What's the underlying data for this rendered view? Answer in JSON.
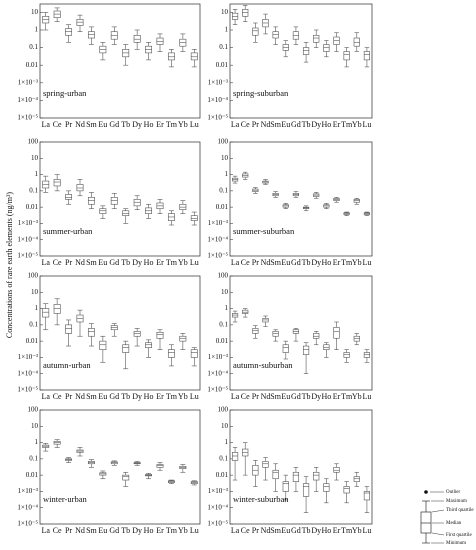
{
  "ylabel": "Concentrations of rare earth elements (ng/m³)",
  "legend": [
    "Outlier",
    "Maximum",
    "Third quartile",
    "Median",
    "First quartile",
    "Minimum"
  ],
  "chart_data": [
    {
      "type": "box",
      "title": "spring-urban",
      "log": true,
      "color": "#555555",
      "categories": [
        "La",
        "Ce",
        "Pr",
        "Nd",
        "Sm",
        "Eu",
        "Gd",
        "Tb",
        "Dy",
        "Ho",
        "Er",
        "Tm",
        "Yb",
        "Lu"
      ],
      "min": [
        1,
        3,
        0.2,
        0.8,
        0.15,
        0.02,
        0.15,
        0.01,
        0.08,
        0.02,
        0.06,
        0.008,
        0.06,
        0.008
      ],
      "q1": [
        2.5,
        5,
        0.5,
        1.8,
        0.35,
        0.05,
        0.3,
        0.03,
        0.2,
        0.05,
        0.15,
        0.02,
        0.12,
        0.02
      ],
      "median": [
        4,
        8,
        0.8,
        2.8,
        0.55,
        0.08,
        0.5,
        0.05,
        0.3,
        0.08,
        0.22,
        0.03,
        0.2,
        0.03
      ],
      "q3": [
        6,
        12,
        1.2,
        4,
        0.8,
        0.12,
        0.8,
        0.08,
        0.5,
        0.12,
        0.35,
        0.05,
        0.3,
        0.05
      ],
      "max": [
        10,
        18,
        2,
        7,
        1.5,
        0.2,
        1.5,
        0.15,
        1,
        0.2,
        0.6,
        0.08,
        0.6,
        0.08
      ],
      "ylim": [
        1e-05,
        30
      ],
      "yticks": [
        10,
        1,
        0.1,
        0.01,
        {
          "value": 0.001,
          "label": "1×10⁻³"
        },
        {
          "value": 0.0001,
          "label": "1×10⁻⁴"
        },
        {
          "value": 1e-05,
          "label": "1×10⁻⁵"
        }
      ]
    },
    {
      "type": "box",
      "title": "spring-suburban",
      "log": true,
      "color": "#555555",
      "categories": [
        "La",
        "Ce",
        "Pr",
        "Nd",
        "Sm",
        "Eu",
        "Gd",
        "Tb",
        "Dy",
        "Ho",
        "Er",
        "Tm",
        "Yb",
        "Lu"
      ],
      "min": [
        2,
        3,
        0.2,
        0.6,
        0.15,
        0.03,
        0.15,
        0.015,
        0.1,
        0.03,
        0.06,
        0.008,
        0.06,
        0.008
      ],
      "q1": [
        4,
        6,
        0.5,
        1.5,
        0.35,
        0.07,
        0.3,
        0.04,
        0.2,
        0.06,
        0.15,
        0.02,
        0.12,
        0.02
      ],
      "median": [
        6,
        10,
        0.9,
        2.5,
        0.55,
        0.1,
        0.5,
        0.07,
        0.35,
        0.1,
        0.25,
        0.04,
        0.2,
        0.04
      ],
      "q3": [
        9,
        15,
        1.3,
        4,
        0.8,
        0.15,
        0.8,
        0.1,
        0.5,
        0.15,
        0.4,
        0.06,
        0.35,
        0.06
      ],
      "max": [
        15,
        25,
        2.5,
        8,
        1.5,
        0.25,
        1.5,
        0.2,
        1,
        0.25,
        0.7,
        0.1,
        0.7,
        0.1
      ],
      "ylim": [
        1e-05,
        30
      ],
      "yticks": [
        10,
        1,
        0.1,
        0.01,
        {
          "value": 0.001,
          "label": "1×10⁻³"
        },
        {
          "value": 0.0001,
          "label": "1×10⁻⁴"
        },
        {
          "value": 1e-05,
          "label": "1×10⁻⁵"
        }
      ]
    },
    {
      "type": "box",
      "title": "summer-urban",
      "log": true,
      "color": "#555555",
      "categories": [
        "La",
        "Ce",
        "Pr",
        "Nd",
        "Sm",
        "Eu",
        "Gd",
        "Tb",
        "Dy",
        "Ho",
        "Er",
        "Tm",
        "Yb",
        "Lu"
      ],
      "min": [
        0.08,
        0.1,
        0.015,
        0.05,
        0.008,
        0.002,
        0.008,
        0.001,
        0.007,
        0.002,
        0.004,
        0.0008,
        0.004,
        0.0008
      ],
      "q1": [
        0.15,
        0.2,
        0.03,
        0.1,
        0.015,
        0.004,
        0.015,
        0.003,
        0.012,
        0.004,
        0.008,
        0.0015,
        0.007,
        0.0015
      ],
      "median": [
        0.25,
        0.35,
        0.04,
        0.15,
        0.025,
        0.006,
        0.025,
        0.004,
        0.02,
        0.006,
        0.012,
        0.0025,
        0.01,
        0.002
      ],
      "q3": [
        0.4,
        0.5,
        0.06,
        0.25,
        0.04,
        0.008,
        0.04,
        0.006,
        0.03,
        0.009,
        0.018,
        0.004,
        0.015,
        0.003
      ],
      "max": [
        0.8,
        1,
        0.1,
        0.5,
        0.08,
        0.012,
        0.07,
        0.008,
        0.05,
        0.015,
        0.03,
        0.006,
        0.025,
        0.005
      ],
      "ylim": [
        1e-05,
        100
      ],
      "yticks": [
        100,
        10,
        1,
        0.1,
        0.01,
        {
          "value": 0.001,
          "label": "1×10⁻³"
        },
        {
          "value": 0.0001,
          "label": "1×10⁻⁴"
        },
        {
          "value": 1e-05,
          "label": "1×10⁻⁵"
        }
      ]
    },
    {
      "type": "box",
      "title": "summer-suburban",
      "log": true,
      "color": "#555555",
      "categories": [
        "La",
        "Ce",
        "Pr",
        "Nd",
        "Sm",
        "Eu",
        "Gd",
        "Tb",
        "Dy",
        "Ho",
        "Er",
        "Tm",
        "Yb",
        "Lu"
      ],
      "min": [
        0.3,
        0.5,
        0.07,
        0.25,
        0.04,
        0.008,
        0.04,
        0.006,
        0.035,
        0.008,
        0.02,
        0.003,
        0.015,
        0.003
      ],
      "q1": [
        0.4,
        0.7,
        0.09,
        0.3,
        0.05,
        0.01,
        0.05,
        0.008,
        0.045,
        0.01,
        0.025,
        0.0035,
        0.02,
        0.0035
      ],
      "median": [
        0.5,
        0.9,
        0.11,
        0.35,
        0.06,
        0.012,
        0.06,
        0.009,
        0.055,
        0.012,
        0.03,
        0.004,
        0.025,
        0.004
      ],
      "q3": [
        0.6,
        1.1,
        0.13,
        0.4,
        0.07,
        0.014,
        0.07,
        0.01,
        0.065,
        0.014,
        0.035,
        0.0045,
        0.03,
        0.0045
      ],
      "max": [
        0.8,
        1.4,
        0.16,
        0.5,
        0.09,
        0.017,
        0.09,
        0.012,
        0.08,
        0.017,
        0.04,
        0.005,
        0.035,
        0.005
      ],
      "ylim": [
        1e-05,
        100
      ],
      "yticks": [
        100,
        10,
        1,
        0.1,
        0.01,
        {
          "value": 0.001,
          "label": "1×10⁻³"
        },
        {
          "value": 0.0001,
          "label": "1×10⁻⁴"
        },
        {
          "value": 1e-05,
          "label": "1×10⁻⁵"
        }
      ]
    },
    {
      "type": "box",
      "title": "autumn-urban",
      "log": true,
      "color": "#555555",
      "categories": [
        "La",
        "Ce",
        "Pr",
        "Nd",
        "Sm",
        "Eu",
        "Gd",
        "Tb",
        "Dy",
        "Ho",
        "Er",
        "Tm",
        "Yb",
        "Lu"
      ],
      "min": [
        0.05,
        0.1,
        0.005,
        0.02,
        0.005,
        0.0005,
        0.02,
        0.0002,
        0.005,
        0.001,
        0.003,
        0.0003,
        0.003,
        0.0003
      ],
      "q1": [
        0.3,
        0.5,
        0.03,
        0.15,
        0.02,
        0.003,
        0.05,
        0.002,
        0.02,
        0.004,
        0.015,
        0.001,
        0.01,
        0.001
      ],
      "median": [
        0.6,
        1,
        0.06,
        0.25,
        0.04,
        0.006,
        0.07,
        0.004,
        0.03,
        0.006,
        0.025,
        0.002,
        0.015,
        0.002
      ],
      "q3": [
        1,
        1.8,
        0.1,
        0.4,
        0.06,
        0.01,
        0.09,
        0.006,
        0.04,
        0.008,
        0.035,
        0.003,
        0.02,
        0.003
      ],
      "max": [
        2,
        4,
        0.2,
        0.8,
        0.12,
        0.02,
        0.12,
        0.01,
        0.06,
        0.012,
        0.05,
        0.006,
        0.03,
        0.004
      ],
      "ylim": [
        1e-05,
        100
      ],
      "yticks": [
        100,
        10,
        1,
        0.1,
        0.01,
        {
          "value": 0.001,
          "label": "1×10⁻³"
        },
        {
          "value": 0.0001,
          "label": "1×10⁻⁴"
        },
        {
          "value": 1e-05,
          "label": "1×10⁻⁵"
        }
      ]
    },
    {
      "type": "box",
      "title": "autumn-suburban",
      "log": true,
      "color": "#555555",
      "categories": [
        "La",
        "Ce",
        "Pr",
        "Nd",
        "Sm",
        "Eu",
        "Gd",
        "Tb",
        "Dy",
        "Ho",
        "Er",
        "Tm",
        "Yb",
        "Lu"
      ],
      "min": [
        0.15,
        0.3,
        0.015,
        0.08,
        0.01,
        0.0008,
        0.01,
        0.0001,
        0.006,
        0.001,
        0.003,
        0.0005,
        0.006,
        0.0005
      ],
      "q1": [
        0.3,
        0.5,
        0.03,
        0.15,
        0.02,
        0.002,
        0.03,
        0.0015,
        0.015,
        0.003,
        0.015,
        0.001,
        0.01,
        0.001
      ],
      "median": [
        0.4,
        0.6,
        0.045,
        0.2,
        0.03,
        0.004,
        0.04,
        0.003,
        0.02,
        0.004,
        0.04,
        0.0015,
        0.015,
        0.0015
      ],
      "q3": [
        0.5,
        0.8,
        0.06,
        0.25,
        0.04,
        0.006,
        0.05,
        0.005,
        0.03,
        0.006,
        0.07,
        0.002,
        0.02,
        0.002
      ],
      "max": [
        0.7,
        1,
        0.09,
        0.35,
        0.05,
        0.01,
        0.06,
        0.008,
        0.04,
        0.008,
        0.15,
        0.003,
        0.03,
        0.003
      ],
      "ylim": [
        1e-05,
        100
      ],
      "yticks": [
        100,
        10,
        1,
        0.1,
        0.01,
        {
          "value": 0.001,
          "label": "1×10⁻³"
        },
        {
          "value": 0.0001,
          "label": "1×10⁻⁴"
        },
        {
          "value": 1e-05,
          "label": "1×10⁻⁵"
        }
      ]
    },
    {
      "type": "box",
      "title": "winter-urban",
      "log": true,
      "color": "#555555",
      "categories": [
        "La",
        "Ce",
        "Pr",
        "Nd",
        "Sm",
        "Eu",
        "Gd",
        "Tb",
        "Dy",
        "Ho",
        "Er",
        "Tm",
        "Yb",
        "Lu"
      ],
      "min": [
        0.3,
        0.5,
        0.06,
        0.15,
        0.03,
        0.006,
        0.04,
        0.002,
        0.04,
        0.006,
        0.02,
        0.003,
        0.015,
        0.0025
      ],
      "q1": [
        0.5,
        0.8,
        0.08,
        0.25,
        0.05,
        0.01,
        0.05,
        0.005,
        0.05,
        0.009,
        0.03,
        0.0035,
        0.025,
        0.003
      ],
      "median": [
        0.6,
        1,
        0.09,
        0.3,
        0.06,
        0.012,
        0.06,
        0.008,
        0.055,
        0.01,
        0.04,
        0.004,
        0.03,
        0.0035
      ],
      "q3": [
        0.7,
        1.2,
        0.1,
        0.35,
        0.07,
        0.014,
        0.065,
        0.01,
        0.06,
        0.011,
        0.045,
        0.0045,
        0.035,
        0.004
      ],
      "max": [
        0.9,
        1.5,
        0.12,
        0.5,
        0.09,
        0.018,
        0.075,
        0.015,
        0.07,
        0.013,
        0.06,
        0.005,
        0.045,
        0.0045
      ],
      "ylim": [
        1e-05,
        100
      ],
      "yticks": [
        100,
        10,
        1,
        0.1,
        0.01,
        {
          "value": 0.001,
          "label": "1×10⁻³"
        },
        {
          "value": 0.0001,
          "label": "1×10⁻⁴"
        },
        {
          "value": 1e-05,
          "label": "1×10⁻⁵"
        }
      ]
    },
    {
      "type": "box",
      "title": "winter-suburban",
      "log": true,
      "color": "#555555",
      "categories": [
        "La",
        "Ce",
        "Pr",
        "Nd",
        "Sm",
        "Eu",
        "Gd",
        "Tb",
        "Dy",
        "Ho",
        "Er",
        "Tm",
        "Yb",
        "Lu"
      ],
      "min": [
        0.005,
        0.01,
        0.002,
        0.005,
        0.001,
        0.0003,
        0.001,
        5e-05,
        0.001,
        0.0002,
        0.005,
        0.0002,
        0.002,
        5e-05
      ],
      "q1": [
        0.08,
        0.15,
        0.01,
        0.03,
        0.006,
        0.001,
        0.004,
        0.0005,
        0.005,
        0.001,
        0.015,
        0.0008,
        0.004,
        0.0003
      ],
      "median": [
        0.15,
        0.25,
        0.02,
        0.05,
        0.015,
        0.003,
        0.01,
        0.002,
        0.01,
        0.002,
        0.02,
        0.0015,
        0.006,
        0.0008
      ],
      "q3": [
        0.25,
        0.4,
        0.04,
        0.07,
        0.02,
        0.004,
        0.015,
        0.003,
        0.015,
        0.003,
        0.03,
        0.002,
        0.008,
        0.001
      ],
      "max": [
        0.5,
        1,
        0.08,
        0.12,
        0.05,
        0.01,
        0.03,
        0.008,
        0.03,
        0.006,
        0.05,
        0.004,
        0.015,
        0.002
      ],
      "ylim": [
        1e-05,
        100
      ],
      "yticks": [
        100,
        10,
        1,
        0.1,
        0.01,
        {
          "value": 0.001,
          "label": "1×10⁻³"
        },
        {
          "value": 0.0001,
          "label": "1×10⁻⁴"
        },
        {
          "value": 1e-05,
          "label": "1×10⁻⁵"
        }
      ]
    }
  ]
}
